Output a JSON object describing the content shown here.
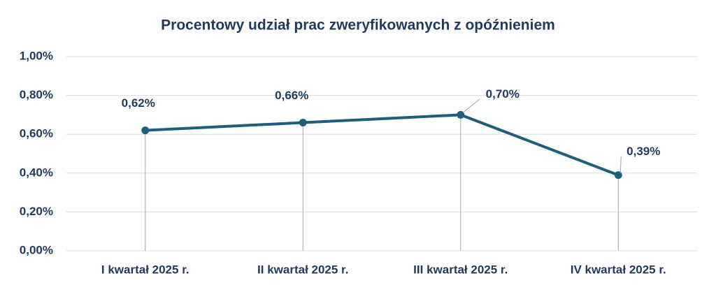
{
  "chart_data": {
    "type": "line",
    "title": "Procentowy udział prac zweryfikowanych z opóźnieniem",
    "categories": [
      "I kwartał 2025 r.",
      "II kwartał 2025 r.",
      "III kwartał 2025 r.",
      "IV kwartał 2025 r."
    ],
    "values": [
      0.62,
      0.66,
      0.7,
      0.39
    ],
    "value_labels": [
      "0,62%",
      "0,66%",
      "0,70%",
      "0,39%"
    ],
    "color": "#1d5f7c",
    "ylim": [
      0,
      1
    ],
    "yticks": [
      {
        "value": 0,
        "label": "0,00%"
      },
      {
        "value": 0.2,
        "label": "0,20%"
      },
      {
        "value": 0.4,
        "label": "0,40%"
      },
      {
        "value": 0.6,
        "label": "0,60%"
      },
      {
        "value": 0.8,
        "label": "0,80%"
      },
      {
        "value": 1,
        "label": "1,00%"
      }
    ],
    "grid": true,
    "drop_lines": true
  }
}
